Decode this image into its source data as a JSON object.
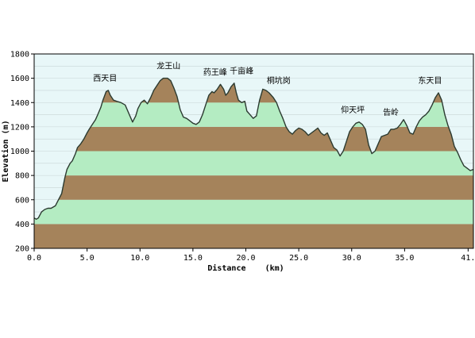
{
  "chart_data": {
    "type": "area",
    "title": "",
    "xlabel": "Distance    (km)",
    "ylabel": "Elevation (m)",
    "xlim": [
      0,
      41.5
    ],
    "ylim": [
      200,
      1800
    ],
    "x_ticks": [
      "0.0",
      "5.0",
      "10.0",
      "15.0",
      "20.0",
      "25.0",
      "30.0",
      "35.0",
      "41."
    ],
    "x_tick_values": [
      0,
      5,
      10,
      15,
      20,
      25,
      30,
      35,
      41
    ],
    "y_ticks": [
      "200",
      "400",
      "600",
      "800",
      "1000",
      "1200",
      "1400",
      "1600",
      "1800"
    ],
    "y_tick_values": [
      200,
      400,
      600,
      800,
      1000,
      1200,
      1400,
      1600,
      1800
    ],
    "fill_bands": {
      "band_size_m": 200,
      "colors": [
        "#a5835b",
        "#b4ecc2"
      ],
      "background": "#e8f7f8",
      "line_color": "#2b3a30"
    },
    "series": [
      {
        "x": [
          0.0,
          0.2,
          0.4,
          0.7,
          1.0,
          1.3,
          1.6,
          2.0,
          2.3,
          2.6,
          2.9,
          3.1,
          3.4,
          3.6,
          3.9,
          4.1,
          4.4,
          4.7,
          5.0,
          5.2,
          5.5,
          5.8,
          6.0,
          6.3,
          6.5,
          6.8,
          7.0,
          7.2,
          7.5,
          7.8,
          8.2,
          8.6,
          9.0,
          9.3,
          9.6,
          9.8,
          10.1,
          10.4,
          10.7,
          11.0,
          11.3,
          11.6,
          11.9,
          12.2,
          12.6,
          12.9,
          13.2,
          13.5,
          13.8,
          14.1,
          14.4,
          14.7,
          15.0,
          15.3,
          15.6,
          15.9,
          16.2,
          16.5,
          16.8,
          17.0,
          17.3,
          17.6,
          17.9,
          18.1,
          18.3,
          18.6,
          18.9,
          19.1,
          19.3,
          19.6,
          19.9,
          20.1,
          20.4,
          20.7,
          21.0,
          21.3,
          21.6,
          21.9,
          22.2,
          22.6,
          22.9,
          23.2,
          23.5,
          23.8,
          24.1,
          24.4,
          24.7,
          25.0,
          25.3,
          25.6,
          25.9,
          26.2,
          26.5,
          26.8,
          27.1,
          27.4,
          27.7,
          28.0,
          28.3,
          28.6,
          28.9,
          29.2,
          29.5,
          29.8,
          30.1,
          30.4,
          30.7,
          31.0,
          31.3,
          31.6,
          31.9,
          32.2,
          32.5,
          32.8,
          33.1,
          33.4,
          33.7,
          34.0,
          34.3,
          34.6,
          34.9,
          35.2,
          35.5,
          35.8,
          36.1,
          36.4,
          36.7,
          37.0,
          37.3,
          37.6,
          37.9,
          38.2,
          38.5,
          38.8,
          39.1,
          39.4,
          39.7,
          40.0,
          40.3,
          40.6,
          40.9,
          41.2,
          41.5
        ],
        "y": [
          450,
          440,
          450,
          500,
          520,
          530,
          530,
          550,
          600,
          650,
          780,
          850,
          900,
          920,
          980,
          1030,
          1060,
          1100,
          1150,
          1180,
          1220,
          1260,
          1300,
          1360,
          1420,
          1490,
          1500,
          1460,
          1420,
          1410,
          1400,
          1380,
          1300,
          1240,
          1290,
          1350,
          1400,
          1420,
          1390,
          1440,
          1500,
          1540,
          1580,
          1600,
          1600,
          1580,
          1520,
          1450,
          1340,
          1280,
          1270,
          1250,
          1230,
          1220,
          1240,
          1300,
          1380,
          1460,
          1490,
          1480,
          1510,
          1550,
          1510,
          1460,
          1480,
          1530,
          1560,
          1480,
          1420,
          1400,
          1410,
          1330,
          1300,
          1270,
          1290,
          1420,
          1510,
          1500,
          1480,
          1440,
          1400,
          1330,
          1270,
          1200,
          1160,
          1140,
          1170,
          1190,
          1180,
          1160,
          1130,
          1150,
          1170,
          1190,
          1150,
          1130,
          1150,
          1090,
          1030,
          1010,
          960,
          1000,
          1080,
          1160,
          1200,
          1230,
          1240,
          1220,
          1180,
          1050,
          980,
          1000,
          1060,
          1120,
          1130,
          1140,
          1180,
          1180,
          1190,
          1220,
          1260,
          1210,
          1150,
          1140,
          1200,
          1250,
          1280,
          1300,
          1330,
          1380,
          1440,
          1480,
          1420,
          1300,
          1210,
          1140,
          1040,
          990,
          930,
          880,
          860,
          840,
          850
        ]
      }
    ],
    "annotations": [
      {
        "text": "西天目",
        "x": 6.7
      },
      {
        "text": "龙王山",
        "x": 12.7
      },
      {
        "text": "药王峰",
        "x": 17.1
      },
      {
        "text": "千亩峰",
        "x": 19.6
      },
      {
        "text": "桐坑岗",
        "x": 23.1
      },
      {
        "text": "仰天坪",
        "x": 30.1
      },
      {
        "text": "告岭",
        "x": 33.7
      },
      {
        "text": "东天目",
        "x": 37.4
      }
    ],
    "grid": false,
    "legend": "none"
  }
}
